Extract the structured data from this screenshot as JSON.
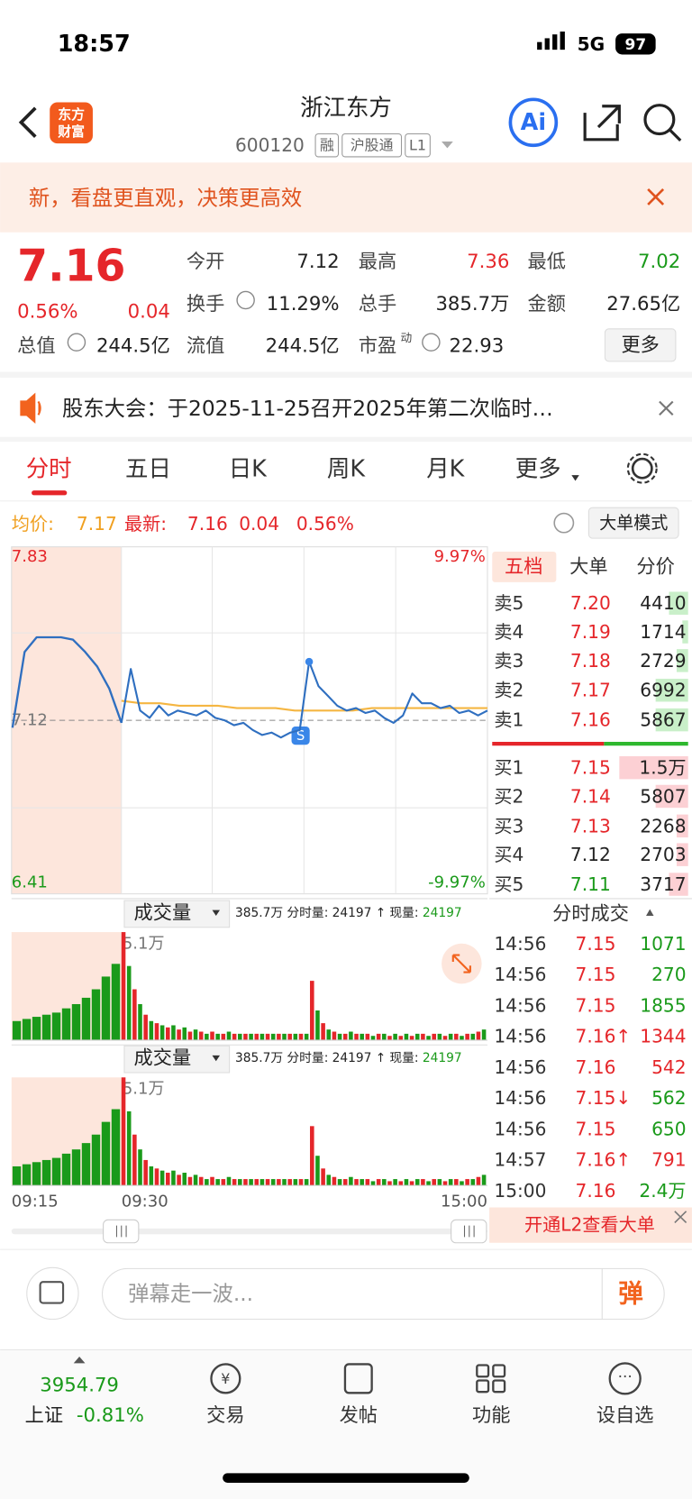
{
  "status": {
    "time": "18:57",
    "network": "5G",
    "battery": "97"
  },
  "header": {
    "logo_top": "东方",
    "logo_bottom": "财富",
    "title": "浙江东方",
    "code": "600120",
    "badges": [
      "融",
      "沪股通",
      "L1"
    ],
    "ai": "Ai"
  },
  "banner": {
    "text": "新，看盘更直观，决策更高效"
  },
  "quote": {
    "price": "7.16",
    "change_pct": "0.56%",
    "change": "0.04",
    "fields": [
      {
        "label": "今开",
        "value": "7.12"
      },
      {
        "label": "最高",
        "value": "7.36"
      },
      {
        "label": "最低",
        "value": "7.02"
      },
      {
        "label": "换手",
        "value": "11.29%"
      },
      {
        "label": "总手",
        "value": "385.7万"
      },
      {
        "label": "金额",
        "value": "27.65亿"
      },
      {
        "label": "总值",
        "value": "244.5亿"
      },
      {
        "label": "流值",
        "value": "244.5亿"
      },
      {
        "label": "市盈",
        "sup": "动",
        "value": "22.93"
      }
    ],
    "more": "更多"
  },
  "notice": "股东大会：于2025-11-25召开2025年第二次临时…",
  "tabs": [
    "分时",
    "五日",
    "日K",
    "周K",
    "月K",
    "更多"
  ],
  "info": {
    "avg_label": "均价:",
    "avg": "7.17",
    "last_label": "最新:",
    "last": "7.16",
    "change": "0.04",
    "change_pct": "0.56%",
    "mode": "大单模式"
  },
  "order_book": {
    "tabs": [
      "五档",
      "大单",
      "分价"
    ],
    "asks": [
      {
        "label": "卖5",
        "price": "7.20",
        "volume": "4410",
        "color": "#e5262a"
      },
      {
        "label": "卖4",
        "price": "7.19",
        "volume": "1714",
        "color": "#e5262a"
      },
      {
        "label": "卖3",
        "price": "7.18",
        "volume": "2729",
        "color": "#e5262a"
      },
      {
        "label": "卖2",
        "price": "7.17",
        "volume": "6992",
        "color": "#e5262a"
      },
      {
        "label": "卖1",
        "price": "7.16",
        "volume": "5867",
        "color": "#e5262a"
      }
    ],
    "bids": [
      {
        "label": "买1",
        "price": "7.15",
        "volume": "1.5万",
        "color": "#e5262a"
      },
      {
        "label": "买2",
        "price": "7.14",
        "volume": "5807",
        "color": "#e5262a"
      },
      {
        "label": "买3",
        "price": "7.13",
        "volume": "2268",
        "color": "#e5262a"
      },
      {
        "label": "买4",
        "price": "7.12",
        "volume": "2703",
        "color": "#222222"
      },
      {
        "label": "买5",
        "price": "7.11",
        "volume": "3717",
        "color": "#1a9a1a"
      }
    ]
  },
  "trades": {
    "title": "分时成交",
    "rows": [
      {
        "time": "14:56",
        "price": "7.15",
        "volume": "1071",
        "color": "#1a9a1a"
      },
      {
        "time": "14:56",
        "price": "7.15",
        "volume": "270",
        "color": "#1a9a1a"
      },
      {
        "time": "14:56",
        "price": "7.15",
        "volume": "1855",
        "color": "#1a9a1a"
      },
      {
        "time": "14:56",
        "price": "7.16↑",
        "volume": "1344",
        "color": "#e5262a"
      },
      {
        "time": "14:56",
        "price": "7.16",
        "volume": "542",
        "color": "#e5262a"
      },
      {
        "time": "14:56",
        "price": "7.15↓",
        "volume": "562",
        "color": "#1a9a1a"
      },
      {
        "time": "14:56",
        "price": "7.15",
        "volume": "650",
        "color": "#1a9a1a"
      },
      {
        "time": "14:57",
        "price": "7.16↑",
        "volume": "791",
        "color": "#e5262a"
      },
      {
        "time": "15:00",
        "price": "7.16",
        "volume": "2.4万",
        "color": "#1a9a1a"
      }
    ],
    "l2": "开通L2查看大单"
  },
  "volume_header": {
    "title": "成交量",
    "total": "385.7万",
    "period_label": "分时量:",
    "period": "24197",
    "arrow": "↑",
    "now_label": "现量:",
    "now": "24197"
  },
  "time_axis": [
    "09:15",
    "09:30",
    "15:00"
  ],
  "comment": {
    "placeholder": "弹幕走一波...",
    "button": "弹"
  },
  "nav": {
    "index_value": "3954.79",
    "index_name": "上证",
    "index_change": "-0.81%",
    "items": [
      "交易",
      "发帖",
      "功能",
      "设自选"
    ]
  },
  "chart_data": [
    {
      "type": "line",
      "premarket": [
        7.09,
        7.4,
        7.46,
        7.46,
        7.46,
        7.45,
        7.4,
        7.34,
        7.25,
        7.11
      ],
      "prices": [
        7.11,
        7.33,
        7.16,
        7.13,
        7.18,
        7.14,
        7.16,
        7.15,
        7.14,
        7.16,
        7.13,
        7.12,
        7.1,
        7.11,
        7.08,
        7.06,
        7.07,
        7.05,
        7.07,
        7.08,
        7.36,
        7.26,
        7.22,
        7.18,
        7.16,
        7.17,
        7.15,
        7.16,
        7.13,
        7.11,
        7.14,
        7.23,
        7.19,
        7.19,
        7.17,
        7.18,
        7.15,
        7.16,
        7.14,
        7.16
      ],
      "avg_prices": [
        7.2,
        7.19,
        7.19,
        7.18,
        7.18,
        7.18,
        7.17,
        7.17,
        7.17,
        7.16,
        7.16,
        7.16,
        7.16,
        7.17,
        7.17,
        7.17,
        7.17,
        7.17,
        7.17,
        7.17
      ],
      "color": "#2f6fc0",
      "avg_color": "#f5b642",
      "ylim": [
        6.41,
        7.83
      ],
      "yticks": [
        7.83,
        7.12,
        6.41
      ],
      "y2lim": [
        -9.97,
        9.97
      ],
      "y2ticks": [
        {
          "value": 9.97,
          "label": "9.97%"
        },
        {
          "value": -9.97,
          "label": "-9.97%"
        }
      ]
    },
    {
      "type": "bar",
      "premarket_values": [
        0.9,
        1.0,
        1.1,
        1.2,
        1.3,
        1.5,
        1.7,
        2.0,
        2.4,
        3.0,
        3.6
      ],
      "values": [
        5.1,
        3.5,
        2.4,
        1.7,
        1.2,
        0.9,
        0.8,
        0.7,
        0.6,
        0.7,
        0.5,
        0.6,
        0.4,
        0.5,
        0.4,
        0.3,
        0.4,
        0.3,
        0.3,
        0.4,
        0.3,
        0.3,
        0.3,
        0.3,
        0.3,
        0.3,
        0.3,
        0.3,
        0.3,
        0.3,
        0.3,
        0.3,
        0.3,
        0.3,
        2.8,
        1.4,
        0.8,
        0.5,
        0.4,
        0.3,
        0.3,
        0.4,
        0.3,
        0.3,
        0.3,
        0.2,
        0.3,
        0.3,
        0.2,
        0.3,
        0.2,
        0.3,
        0.2,
        0.3,
        0.3,
        0.2,
        0.3,
        0.3,
        0.2,
        0.3,
        0.3,
        0.2,
        0.3,
        0.3,
        0.4,
        0.5
      ],
      "up_color": "#e5262a",
      "down_color": "#1a9a1a",
      "ylim": [
        0,
        5.1
      ],
      "yticks": [
        {
          "value": 5.1,
          "label": "5.1万"
        }
      ]
    }
  ]
}
